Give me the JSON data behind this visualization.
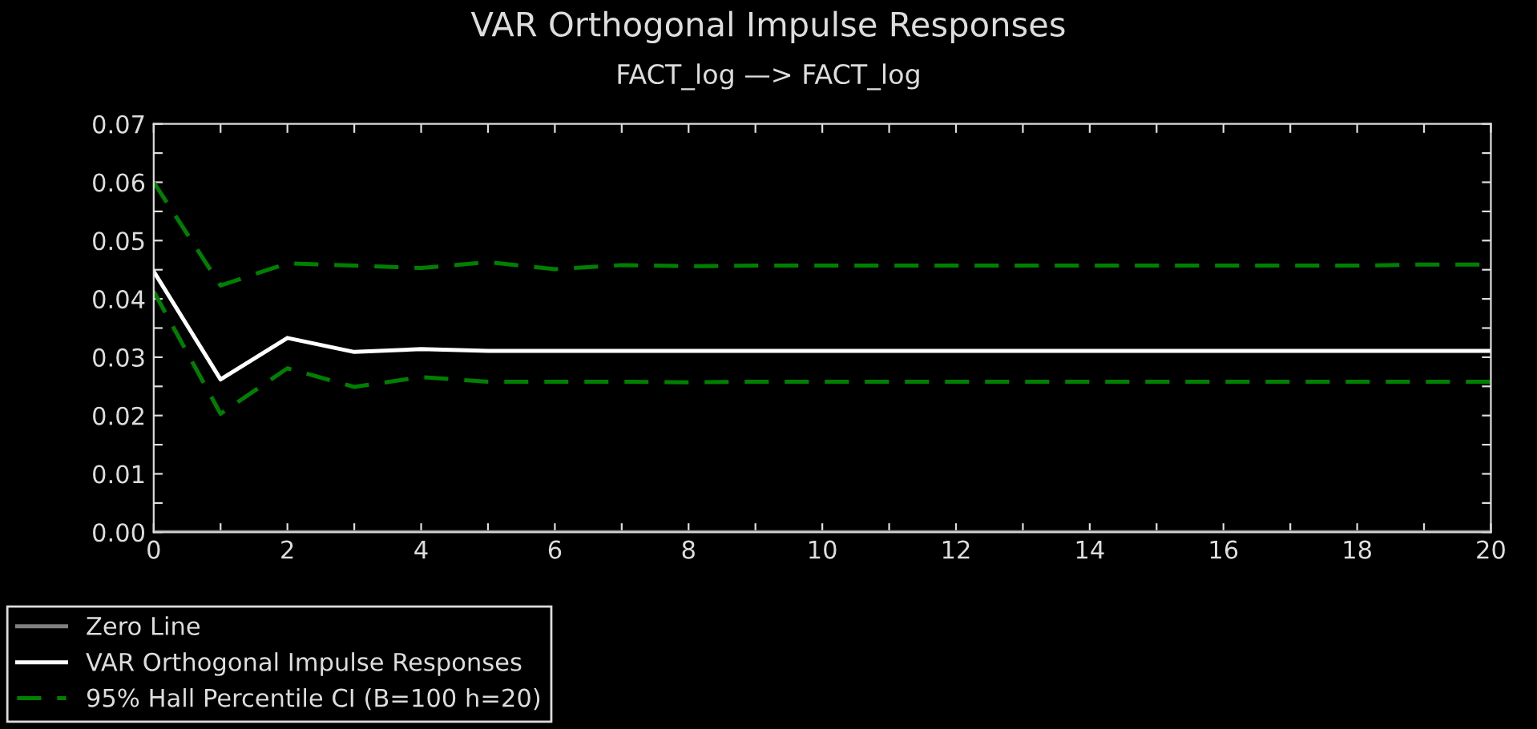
{
  "chart_data": {
    "type": "line",
    "title": "VAR Orthogonal Impulse Responses",
    "subtitle": "FACT_log —> FACT_log",
    "x": [
      0,
      1,
      2,
      3,
      4,
      5,
      6,
      7,
      8,
      9,
      10,
      11,
      12,
      13,
      14,
      15,
      16,
      17,
      18,
      19,
      20
    ],
    "series": [
      {
        "name": "Zero Line",
        "color": "#808080",
        "line_style": "solid",
        "values": [
          0,
          0,
          0,
          0,
          0,
          0,
          0,
          0,
          0,
          0,
          0,
          0,
          0,
          0,
          0,
          0,
          0,
          0,
          0,
          0,
          0
        ]
      },
      {
        "name": "VAR Orthogonal Impulse Responses",
        "color": "#ffffff",
        "line_style": "solid",
        "values": [
          0.0447,
          0.0262,
          0.0333,
          0.0309,
          0.0314,
          0.0311,
          0.0311,
          0.0311,
          0.0311,
          0.0311,
          0.0311,
          0.0311,
          0.0311,
          0.0311,
          0.0311,
          0.0311,
          0.0311,
          0.0311,
          0.0311,
          0.0311,
          0.0311
        ]
      },
      {
        "name": "95% Hall Percentile CI (B=100 h=20)",
        "color": "#008000",
        "line_style": "dashed",
        "values": [
          0.06,
          0.0423,
          0.0461,
          0.0457,
          0.0453,
          0.0463,
          0.0451,
          0.0458,
          0.0456,
          0.0457,
          0.0457,
          0.0457,
          0.0457,
          0.0457,
          0.0457,
          0.0457,
          0.0457,
          0.0457,
          0.0457,
          0.0459,
          0.0459
        ]
      },
      {
        "color": "#008000",
        "line_style": "dashed",
        "values": [
          0.0413,
          0.0203,
          0.0281,
          0.0249,
          0.0266,
          0.0258,
          0.0258,
          0.0258,
          0.0257,
          0.0258,
          0.0258,
          0.0258,
          0.0258,
          0.0258,
          0.0258,
          0.0258,
          0.0258,
          0.0258,
          0.0258,
          0.0258,
          0.0258
        ]
      }
    ],
    "xlim": [
      0,
      20
    ],
    "ylim": [
      0,
      0.07
    ],
    "xticks": [
      0,
      {
        "value": 1,
        "label": null
      },
      2,
      {
        "value": 3,
        "label": null
      },
      4,
      {
        "value": 5,
        "label": null
      },
      6,
      {
        "value": 7,
        "label": null
      },
      8,
      {
        "value": 9,
        "label": null
      },
      10,
      {
        "value": 11,
        "label": null
      },
      12,
      {
        "value": 13,
        "label": null
      },
      14,
      {
        "value": 15,
        "label": null
      },
      16,
      {
        "value": 17,
        "label": null
      },
      18,
      {
        "value": 19,
        "label": null
      },
      20
    ],
    "yticks": [
      {
        "value": 0,
        "label": "0.00"
      },
      {
        "value": 0.005,
        "label": null
      },
      0.01,
      {
        "value": 0.015,
        "label": null
      },
      0.02,
      {
        "value": 0.025,
        "label": null
      },
      0.03,
      {
        "value": 0.035,
        "label": null
      },
      0.04,
      {
        "value": 0.045,
        "label": null
      },
      0.05,
      {
        "value": 0.055,
        "label": null
      },
      0.06,
      {
        "value": 0.065,
        "label": null
      },
      0.07
    ],
    "grid": false,
    "legend": "bottom left",
    "marker": "none"
  }
}
